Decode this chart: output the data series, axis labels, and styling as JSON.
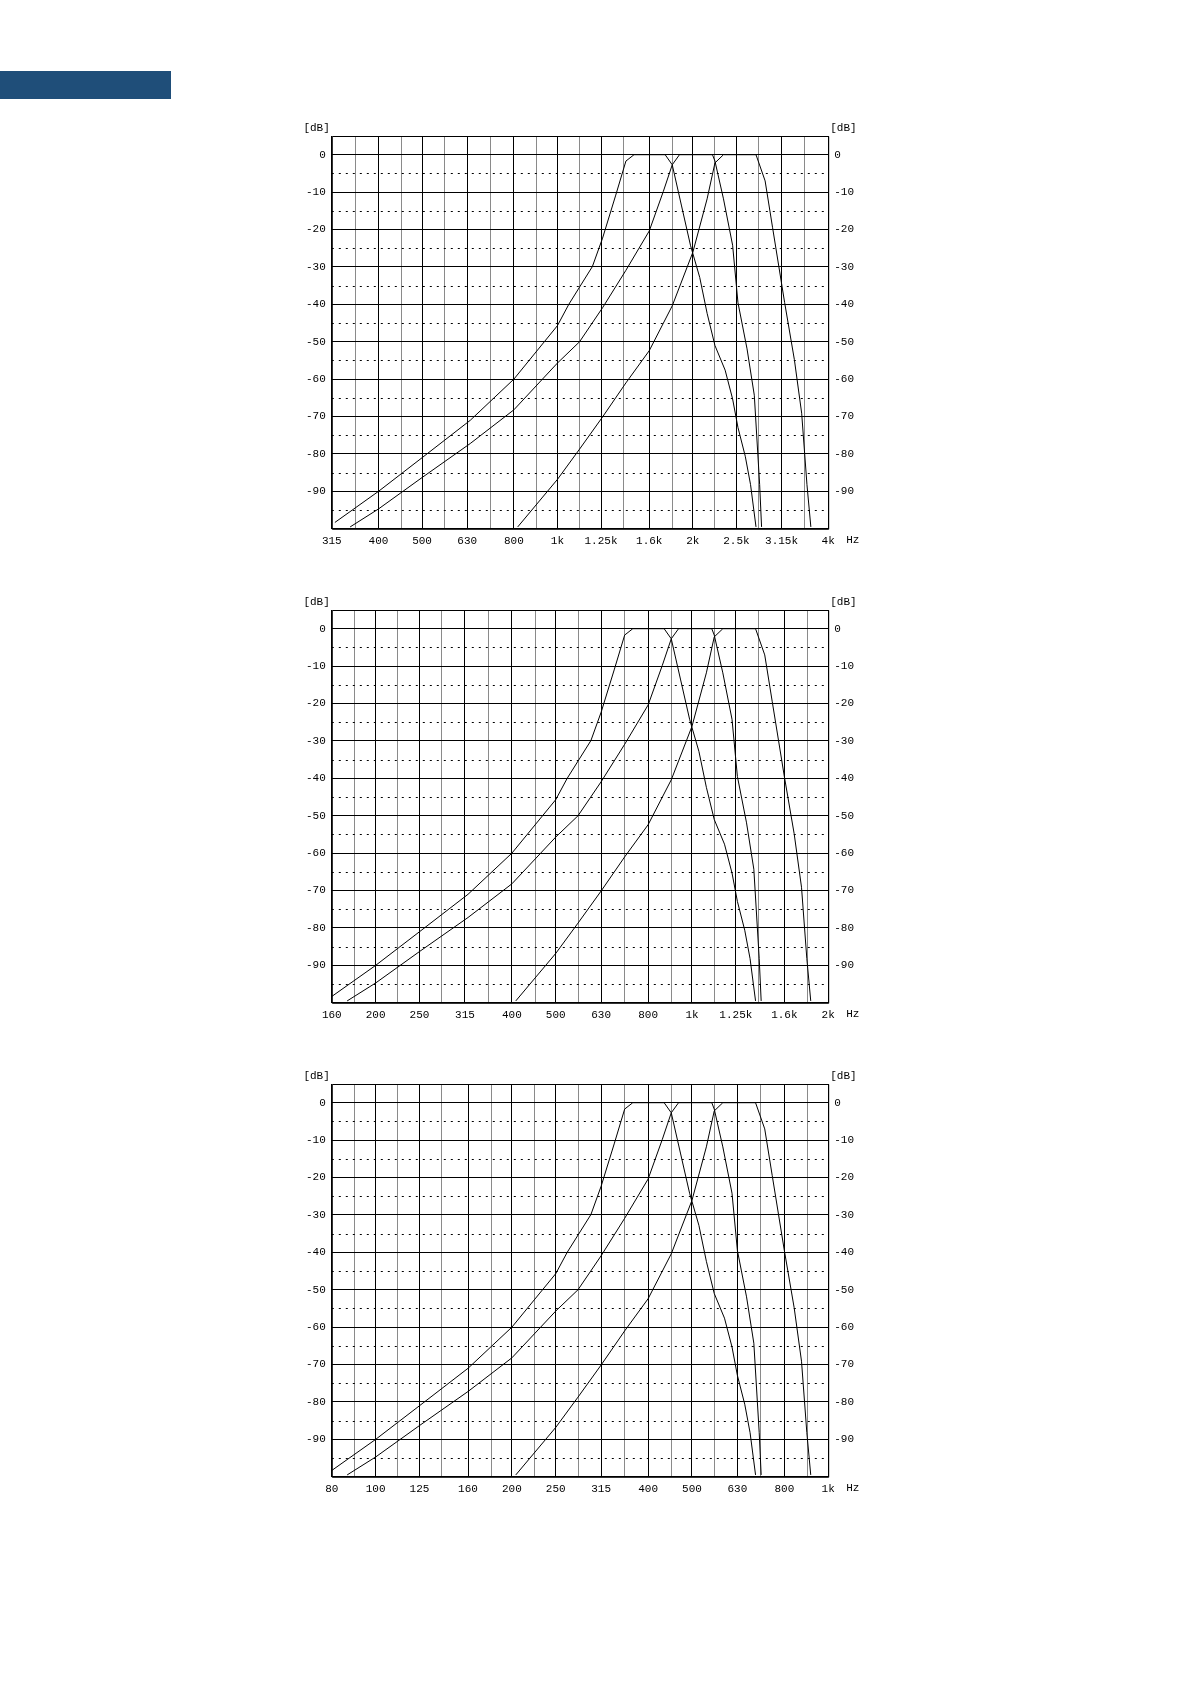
{
  "chart_data": [
    {
      "type": "line",
      "xlabel": "Hz",
      "ylabel": "[dB]",
      "y2label": "[dB]",
      "log": "x",
      "grid": true,
      "marker": "none",
      "line_style": "solid",
      "xlim": [
        315,
        4000
      ],
      "xticks": [
        315,
        {
          "value": 355,
          "label": null
        },
        400,
        {
          "value": 450,
          "label": null
        },
        500,
        {
          "value": 560,
          "label": null
        },
        630,
        {
          "value": 710,
          "label": null
        },
        800,
        {
          "value": 900,
          "label": null
        },
        {
          "value": 1000,
          "label": "1k"
        },
        {
          "value": 1120,
          "label": null
        },
        {
          "value": 1250,
          "label": "1.25k"
        },
        {
          "value": 1400,
          "label": null
        },
        {
          "value": 1600,
          "label": "1.6k"
        },
        {
          "value": 1800,
          "label": null
        },
        {
          "value": 2000,
          "label": "2k"
        },
        {
          "value": 2240,
          "label": null
        },
        {
          "value": 2500,
          "label": "2.5k"
        },
        {
          "value": 2800,
          "label": null
        },
        {
          "value": 3150,
          "label": "3.15k"
        },
        {
          "value": 3550,
          "label": null
        },
        {
          "value": 4000,
          "label": "4k"
        }
      ],
      "ylim": [
        -100,
        5
      ],
      "yticks": [
        0,
        {
          "value": -5,
          "label": null
        },
        -10,
        {
          "value": -15,
          "label": null
        },
        -20,
        {
          "value": -25,
          "label": null
        },
        -30,
        {
          "value": -35,
          "label": null
        },
        -40,
        {
          "value": -45,
          "label": null
        },
        -50,
        {
          "value": -55,
          "label": null
        },
        -60,
        {
          "value": -65,
          "label": null
        },
        -70,
        {
          "value": -75,
          "label": null
        },
        -80,
        {
          "value": -85,
          "label": null
        },
        -90,
        {
          "value": -95,
          "label": null
        }
      ],
      "y2lim": [
        -100,
        5
      ],
      "y2ticks": [
        0,
        -10,
        -20,
        -30,
        -40,
        -50,
        -60,
        -70,
        -80,
        -90
      ],
      "series": [
        {
          "color": "#000000",
          "x": [
            320,
            400,
            500,
            640,
            800,
            1000,
            1060,
            1196,
            1260,
            1348,
            1420,
            1480,
            1736,
            1800,
            1888,
            1976,
            2072,
            2152,
            2240,
            2360,
            2452,
            2520,
            2616,
            2688,
            2764
          ],
          "values": [
            -98.3,
            -90,
            -81,
            -71,
            -60,
            -45.7,
            -40,
            -29.9,
            -22.3,
            -10.8,
            -1.7,
            0,
            0,
            -2.7,
            -13.7,
            -24.2,
            -32.8,
            -42.4,
            -51,
            -57.6,
            -65.3,
            -72.9,
            -80.6,
            -88.2,
            -99.5
          ]
        },
        {
          "color": "#000000",
          "x": [
            346,
            400,
            500,
            640,
            800,
            1000,
            1120,
            1260,
            1420,
            1600,
            1720,
            1800,
            1868,
            2212,
            2240,
            2340,
            2452,
            2520,
            2640,
            2740,
            2816,
            2844
          ],
          "values": [
            -99.5,
            -94.7,
            -86.3,
            -77.2,
            -68.2,
            -55.7,
            -50,
            -40.9,
            -30.9,
            -20.4,
            -9.8,
            -2.7,
            0,
            0,
            -1.7,
            -11.8,
            -24.2,
            -39.5,
            -51.9,
            -64.3,
            -88.2,
            -99.5
          ]
        },
        {
          "color": "#000000",
          "x": [
            816,
            1000,
            1120,
            1260,
            1420,
            1600,
            1800,
            2000,
            2152,
            2240,
            2340,
            2764,
            2896,
            3008,
            3200,
            3364,
            3492,
            3588,
            3660
          ],
          "values": [
            -99.5,
            -86.8,
            -78.7,
            -70.1,
            -61,
            -52.4,
            -40.4,
            -26.1,
            -11.8,
            -2.2,
            0,
            0,
            -7,
            -19.4,
            -39.5,
            -54.8,
            -69.1,
            -88.2,
            -99.5
          ]
        }
      ]
    },
    {
      "type": "line",
      "xlabel": "Hz",
      "ylabel": "[dB]",
      "y2label": "[dB]",
      "log": "x",
      "grid": true,
      "marker": "none",
      "line_style": "solid",
      "xlim": [
        160,
        2000
      ],
      "xticks": [
        160,
        {
          "value": 180,
          "label": null
        },
        200,
        {
          "value": 224,
          "label": null
        },
        250,
        {
          "value": 280,
          "label": null
        },
        315,
        {
          "value": 355,
          "label": null
        },
        400,
        {
          "value": 450,
          "label": null
        },
        500,
        {
          "value": 560,
          "label": null
        },
        630,
        {
          "value": 710,
          "label": null
        },
        800,
        {
          "value": 900,
          "label": null
        },
        {
          "value": 1000,
          "label": "1k"
        },
        {
          "value": 1120,
          "label": null
        },
        {
          "value": 1250,
          "label": "1.25k"
        },
        {
          "value": 1400,
          "label": null
        },
        {
          "value": 1600,
          "label": "1.6k"
        },
        {
          "value": 1800,
          "label": null
        },
        {
          "value": 2000,
          "label": "2k"
        }
      ],
      "ylim": [
        -100,
        5
      ],
      "yticks": [
        0,
        {
          "value": -5,
          "label": null
        },
        -10,
        {
          "value": -15,
          "label": null
        },
        -20,
        {
          "value": -25,
          "label": null
        },
        -30,
        {
          "value": -35,
          "label": null
        },
        -40,
        {
          "value": -45,
          "label": null
        },
        -50,
        {
          "value": -55,
          "label": null
        },
        -60,
        {
          "value": -65,
          "label": null
        },
        -70,
        {
          "value": -75,
          "label": null
        },
        -80,
        {
          "value": -85,
          "label": null
        },
        -90,
        {
          "value": -95,
          "label": null
        }
      ],
      "y2lim": [
        -100,
        5
      ],
      "y2ticks": [
        0,
        -10,
        -20,
        -30,
        -40,
        -50,
        -60,
        -70,
        -80,
        -90
      ],
      "series": [
        {
          "color": "#000000",
          "x": [
            160,
            200,
            250,
            320,
            400,
            500,
            530,
            598,
            630,
            674,
            710,
            740,
            868,
            900,
            944,
            988,
            1036,
            1076,
            1120,
            1180,
            1226,
            1260,
            1308,
            1344,
            1382
          ],
          "values": [
            -98.3,
            -90,
            -81,
            -71,
            -60,
            -45.7,
            -40,
            -29.9,
            -22.3,
            -10.8,
            -1.7,
            0,
            0,
            -2.7,
            -13.7,
            -24.2,
            -32.8,
            -42.4,
            -51,
            -57.6,
            -65.3,
            -72.9,
            -80.6,
            -88.2,
            -99.5
          ]
        },
        {
          "color": "#000000",
          "x": [
            173,
            200,
            250,
            320,
            400,
            500,
            560,
            630,
            710,
            800,
            860,
            900,
            934,
            1106,
            1120,
            1170,
            1226,
            1260,
            1320,
            1370,
            1408,
            1422
          ],
          "values": [
            -99.5,
            -94.7,
            -86.3,
            -77.2,
            -68.2,
            -55.7,
            -50,
            -40.9,
            -30.9,
            -20.4,
            -9.8,
            -2.7,
            0,
            0,
            -1.7,
            -11.8,
            -24.2,
            -39.5,
            -51.9,
            -64.3,
            -88.2,
            -99.5
          ]
        },
        {
          "color": "#000000",
          "x": [
            408,
            500,
            560,
            630,
            710,
            800,
            900,
            1000,
            1076,
            1120,
            1170,
            1382,
            1448,
            1504,
            1600,
            1682,
            1746,
            1794,
            1830
          ],
          "values": [
            -99.5,
            -86.8,
            -78.7,
            -70.1,
            -61,
            -52.4,
            -40.4,
            -26.1,
            -11.8,
            -2.2,
            0,
            0,
            -7,
            -19.4,
            -39.5,
            -54.8,
            -69.1,
            -88.2,
            -99.5
          ]
        }
      ]
    },
    {
      "type": "line",
      "xlabel": "Hz",
      "ylabel": "[dB]",
      "y2label": "[dB]",
      "log": "x",
      "grid": true,
      "marker": "none",
      "line_style": "solid",
      "xlim": [
        80,
        1000
      ],
      "xticks": [
        80,
        {
          "value": 90,
          "label": null
        },
        100,
        {
          "value": 112,
          "label": null
        },
        125,
        {
          "value": 140,
          "label": null
        },
        160,
        {
          "value": 180,
          "label": null
        },
        200,
        {
          "value": 224,
          "label": null
        },
        250,
        {
          "value": 280,
          "label": null
        },
        315,
        {
          "value": 355,
          "label": null
        },
        400,
        {
          "value": 450,
          "label": null
        },
        500,
        {
          "value": 560,
          "label": null
        },
        630,
        {
          "value": 710,
          "label": null
        },
        800,
        {
          "value": 900,
          "label": null
        },
        {
          "value": 1000,
          "label": "1k"
        }
      ],
      "ylim": [
        -100,
        5
      ],
      "yticks": [
        0,
        {
          "value": -5,
          "label": null
        },
        -10,
        {
          "value": -15,
          "label": null
        },
        -20,
        {
          "value": -25,
          "label": null
        },
        -30,
        {
          "value": -35,
          "label": null
        },
        -40,
        {
          "value": -45,
          "label": null
        },
        -50,
        {
          "value": -55,
          "label": null
        },
        -60,
        {
          "value": -65,
          "label": null
        },
        -70,
        {
          "value": -75,
          "label": null
        },
        -80,
        {
          "value": -85,
          "label": null
        },
        -90,
        {
          "value": -95,
          "label": null
        }
      ],
      "y2lim": [
        -100,
        5
      ],
      "y2ticks": [
        0,
        -10,
        -20,
        -30,
        -40,
        -50,
        -60,
        -70,
        -80,
        -90
      ],
      "series": [
        {
          "color": "#000000",
          "x": [
            80,
            100,
            125,
            160,
            200,
            250,
            265,
            299,
            315,
            337,
            355,
            370,
            434,
            450,
            472,
            494,
            518,
            538,
            560,
            590,
            613,
            630,
            654,
            672,
            691
          ],
          "values": [
            -98.3,
            -90,
            -81,
            -71,
            -60,
            -45.7,
            -40,
            -29.9,
            -22.3,
            -10.8,
            -1.7,
            0,
            0,
            -2.7,
            -13.7,
            -24.2,
            -32.8,
            -42.4,
            -51,
            -57.6,
            -65.3,
            -72.9,
            -80.6,
            -88.2,
            -99.5
          ]
        },
        {
          "color": "#000000",
          "x": [
            86.5,
            100,
            125,
            160,
            200,
            250,
            280,
            315,
            355,
            400,
            430,
            450,
            467,
            553,
            560,
            585,
            613,
            630,
            660,
            685,
            704,
            711
          ],
          "values": [
            -99.5,
            -94.7,
            -86.3,
            -77.2,
            -68.2,
            -55.7,
            -50,
            -40.9,
            -30.9,
            -20.4,
            -9.8,
            -2.7,
            0,
            0,
            -1.7,
            -11.8,
            -24.2,
            -39.5,
            -51.9,
            -64.3,
            -88.2,
            -99.5
          ]
        },
        {
          "color": "#000000",
          "x": [
            204,
            250,
            280,
            315,
            355,
            400,
            450,
            500,
            538,
            560,
            585,
            691,
            724,
            752,
            800,
            841,
            873,
            897,
            915
          ],
          "values": [
            -99.5,
            -86.8,
            -78.7,
            -70.1,
            -61,
            -52.4,
            -40.4,
            -26.1,
            -11.8,
            -2.2,
            0,
            0,
            -7,
            -19.4,
            -39.5,
            -54.8,
            -69.1,
            -88.2,
            -99.5
          ]
        }
      ]
    }
  ]
}
